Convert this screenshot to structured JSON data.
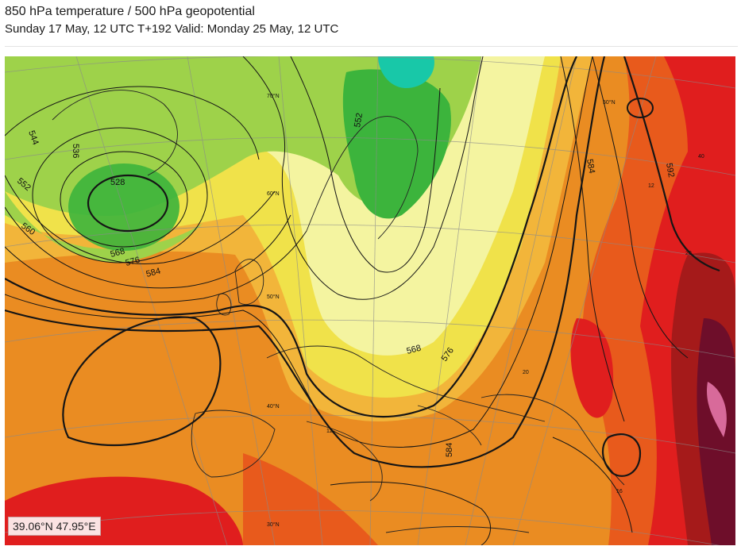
{
  "header": {
    "title": "850 hPa temperature / 500 hPa geopotential",
    "subtitle": "Sunday 17 May, 12 UTC T+192 Valid: Monday 25 May, 12 UTC"
  },
  "map": {
    "layer_temperature": "850 hPa temperature",
    "layer_geopotential": "500 hPa geopotential",
    "contour_labels": [
      "544",
      "536",
      "528",
      "552",
      "560",
      "568",
      "576",
      "584",
      "552",
      "568",
      "576",
      "584",
      "584",
      "592"
    ],
    "temperature_labels": [
      "12",
      "20",
      "20",
      "12",
      "40",
      "16"
    ],
    "latitude_labels": [
      "70°N",
      "60°N",
      "50°N",
      "40°N",
      "30°N",
      "50°N"
    ],
    "colors": {
      "cold": "#18c8a8",
      "cool_green": "#3cb43c",
      "light_green": "#9ed24a",
      "pale_yellow": "#f4f4a0",
      "yellow": "#f0e24a",
      "orange_light": "#f2b53a",
      "orange": "#ea8c22",
      "red_orange": "#e85a1c",
      "red": "#e01e1e",
      "dark_red": "#a51a1a",
      "maroon": "#6e0e2a",
      "pink": "#d86a9a"
    }
  },
  "coordinate_readout": "39.06°N 47.95°E"
}
